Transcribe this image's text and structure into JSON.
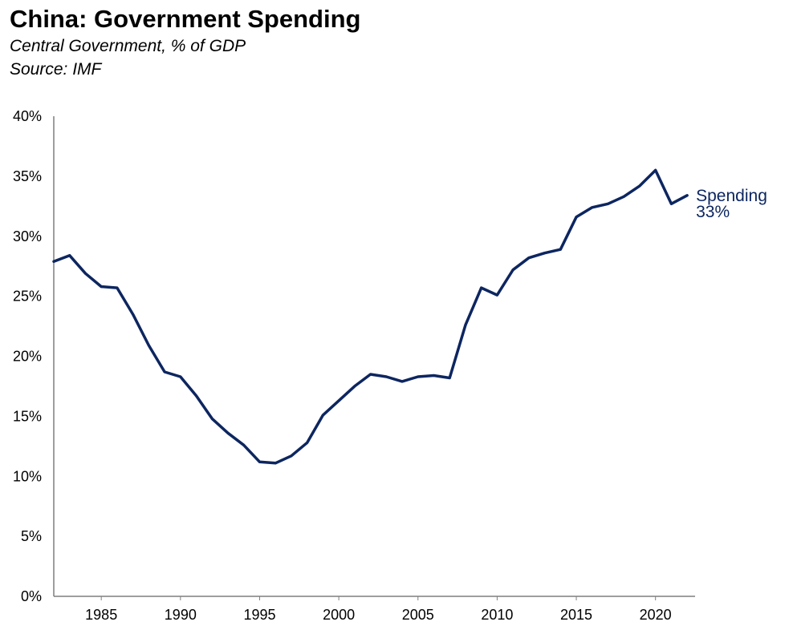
{
  "title": "China: Government Spending",
  "subtitle": "Central Government, % of GDP",
  "source": "Source: IMF",
  "colors": {
    "line": "#0d2660",
    "axis": "#7f7f7f",
    "text": "#000000"
  },
  "chart_data": {
    "type": "line",
    "xlim": [
      1982,
      2022.5
    ],
    "ylim": [
      0,
      40
    ],
    "x_ticks": [
      1985,
      1990,
      1995,
      2000,
      2005,
      2010,
      2015,
      2020
    ],
    "x_tick_labels": [
      "1985",
      "1990",
      "1995",
      "2000",
      "2005",
      "2010",
      "2015",
      "2020"
    ],
    "y_ticks": [
      0,
      5,
      10,
      15,
      20,
      25,
      30,
      35,
      40
    ],
    "y_tick_labels": [
      "0%",
      "5%",
      "10%",
      "15%",
      "20%",
      "25%",
      "30%",
      "35%",
      "40%"
    ],
    "grid": false,
    "legend": "none",
    "series": [
      {
        "name": "Spending",
        "end_label": "33%",
        "x": [
          1982,
          1983,
          1984,
          1985,
          1986,
          1987,
          1988,
          1989,
          1990,
          1991,
          1992,
          1993,
          1994,
          1995,
          1996,
          1997,
          1998,
          1999,
          2000,
          2001,
          2002,
          2003,
          2004,
          2005,
          2006,
          2007,
          2008,
          2009,
          2010,
          2011,
          2012,
          2013,
          2014,
          2015,
          2016,
          2017,
          2018,
          2019,
          2020,
          2021,
          2022
        ],
        "y": [
          27.9,
          28.4,
          26.9,
          25.8,
          25.7,
          23.5,
          20.9,
          18.7,
          18.3,
          16.7,
          14.8,
          13.6,
          12.6,
          11.2,
          11.1,
          11.7,
          12.8,
          15.1,
          16.3,
          17.5,
          18.5,
          18.3,
          17.9,
          18.3,
          18.4,
          18.2,
          22.6,
          25.7,
          25.1,
          27.2,
          28.2,
          28.6,
          28.9,
          31.6,
          32.4,
          32.7,
          33.3,
          34.2,
          35.5,
          32.7,
          33.4
        ]
      }
    ]
  }
}
